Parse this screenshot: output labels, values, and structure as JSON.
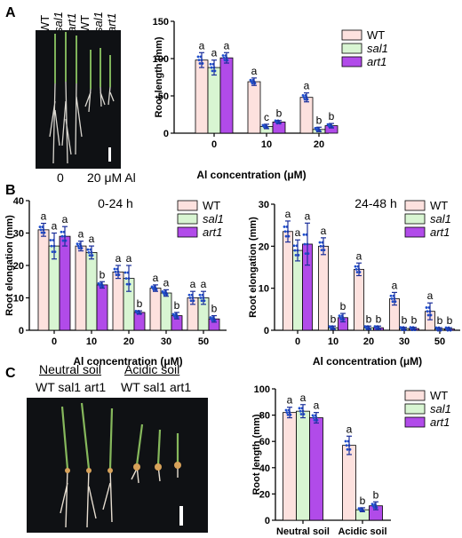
{
  "panels": {
    "A": {
      "letter": "A",
      "photo_labels_rotated": [
        "WT",
        "sal1",
        "art1",
        "WT",
        "sal1",
        "art1"
      ],
      "photo_bottom_left": "0",
      "photo_bottom_right": "20 μM Al"
    },
    "B": {
      "letter": "B"
    },
    "C": {
      "letter": "C",
      "photo_header_left": "Neutral soil",
      "photo_header_right": "Acidic soil",
      "photo_genotypes_left": "WT sal1 art1",
      "photo_genotypes_right": "WT sal1 art1"
    }
  },
  "colors": {
    "WT": "#fde1de",
    "sal1": "#d8f5d2",
    "art1": "#b14be9",
    "dots": "#1f4ecc",
    "error": "#1a2e9a"
  },
  "chart_data": [
    {
      "id": "A",
      "type": "bar",
      "title": "",
      "xlabel": "Al concentration (μM)",
      "ylabel": "Root length (mm)",
      "categories": [
        "0",
        "10",
        "20"
      ],
      "ylim": [
        0,
        150
      ],
      "yticks": [
        0,
        50,
        100,
        150
      ],
      "series": [
        {
          "name": "WT",
          "values": [
            98,
            69,
            48
          ],
          "errors": [
            10,
            5,
            6
          ],
          "letters": [
            "a",
            "a",
            "a"
          ]
        },
        {
          "name": "sal1",
          "values": [
            88,
            9,
            5
          ],
          "errors": [
            10,
            3,
            3
          ],
          "letters": [
            "a",
            "c",
            "b"
          ]
        },
        {
          "name": "art1",
          "values": [
            101,
            15,
            10
          ],
          "errors": [
            7,
            2,
            3
          ],
          "letters": [
            "a",
            "b",
            "b"
          ]
        }
      ],
      "legend": "top-right"
    },
    {
      "id": "B1",
      "type": "bar",
      "title": "0-24 h",
      "xlabel": "Al concentration (μM)",
      "ylabel": "Root elongation (mm)",
      "categories": [
        "0",
        "10",
        "20",
        "30",
        "50"
      ],
      "ylim": [
        0,
        40
      ],
      "yticks": [
        0,
        10,
        20,
        30,
        40
      ],
      "series": [
        {
          "name": "WT",
          "values": [
            31,
            26,
            18,
            13,
            10
          ],
          "errors": [
            2,
            1.5,
            2,
            1,
            2
          ],
          "letters": [
            "a",
            "a",
            "a",
            "a",
            "a"
          ]
        },
        {
          "name": "sal1",
          "values": [
            26,
            24,
            16,
            11.5,
            10
          ],
          "errors": [
            4,
            2,
            4,
            1,
            2
          ],
          "letters": [
            "a",
            "a",
            "a",
            "a",
            "a"
          ]
        },
        {
          "name": "art1",
          "values": [
            29,
            14,
            5.5,
            4.5,
            3.5
          ],
          "errors": [
            3,
            1,
            0.5,
            1,
            1
          ],
          "letters": [
            "a",
            "b",
            "b",
            "b",
            "b"
          ]
        }
      ],
      "legend": "top-right"
    },
    {
      "id": "B2",
      "type": "bar",
      "title": "24-48 h",
      "xlabel": "Al concentration (μM)",
      "ylabel": "Root elongation (mm)",
      "categories": [
        "0",
        "10",
        "20",
        "30",
        "50"
      ],
      "ylim": [
        0,
        30
      ],
      "yticks": [
        0,
        10,
        20,
        30
      ],
      "series": [
        {
          "name": "WT",
          "values": [
            23.5,
            20,
            14.5,
            7.5,
            4.5
          ],
          "errors": [
            2.5,
            2,
            1.5,
            1.5,
            2
          ],
          "letters": [
            "a",
            "a",
            "a",
            "a",
            "a"
          ]
        },
        {
          "name": "sal1",
          "values": [
            19,
            0.6,
            0.6,
            0.4,
            0.3
          ],
          "errors": [
            2.5,
            0.4,
            0.4,
            0.3,
            0.3
          ],
          "letters": [
            "a",
            "b",
            "b",
            "b",
            "b"
          ]
        },
        {
          "name": "art1",
          "values": [
            20.5,
            3,
            0.6,
            0.4,
            0.3
          ],
          "errors": [
            5,
            1,
            0.4,
            0.3,
            0.3
          ],
          "letters": [
            "a",
            "b",
            "b",
            "b",
            "b"
          ]
        }
      ],
      "legend": "top-right"
    },
    {
      "id": "C",
      "type": "bar",
      "title": "",
      "xlabel": "",
      "ylabel": "Root length (mm)",
      "categories": [
        "Neutral soil",
        "Acidic soil"
      ],
      "ylim": [
        0,
        100
      ],
      "yticks": [
        0,
        20,
        40,
        60,
        80,
        100
      ],
      "series": [
        {
          "name": "WT",
          "values": [
            82,
            57
          ],
          "errors": [
            4,
            7
          ],
          "letters": [
            "a",
            "a"
          ]
        },
        {
          "name": "sal1",
          "values": [
            83,
            8
          ],
          "errors": [
            5,
            1.5
          ],
          "letters": [
            "a",
            "b"
          ]
        },
        {
          "name": "art1",
          "values": [
            78,
            11
          ],
          "errors": [
            4,
            3
          ],
          "letters": [
            "a",
            "b"
          ]
        }
      ],
      "legend": "top-right"
    }
  ]
}
